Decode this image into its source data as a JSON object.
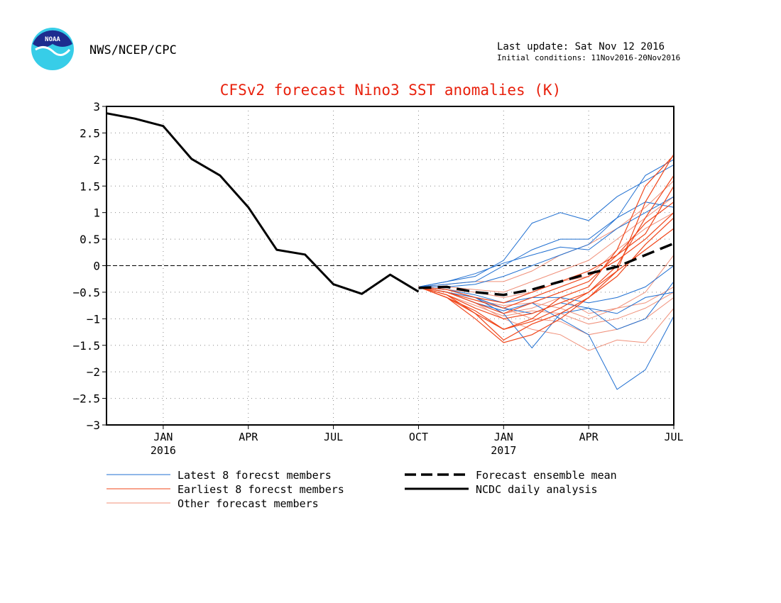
{
  "header": {
    "agency": "NWS/NCEP/CPC",
    "logo_text": "NOAA",
    "last_update": "Last update: Sat Nov 12 2016",
    "initial_conditions": "Initial conditions: 11Nov2016-20Nov2016"
  },
  "colors": {
    "title": "#e8200c",
    "latest": "#1f6fd1",
    "earliest": "#f0461a",
    "other": "#f0907a",
    "analysis": "#000000",
    "logo_dark": "#1d2d8f",
    "logo_light": "#37cde8"
  },
  "chart_data": {
    "type": "line",
    "title": "CFSv2 forecast Nino3 SST anomalies (K)",
    "ylim": [
      -3,
      3
    ],
    "yticks": [
      -3,
      -2.5,
      -2,
      -1.5,
      -1,
      -0.5,
      0,
      0.5,
      1,
      1.5,
      2,
      2.5,
      3
    ],
    "ytick_labels": [
      "−3",
      "−2.5",
      "−2",
      "−1.5",
      "−1",
      "−0.5",
      "0",
      "0.5",
      "1",
      "1.5",
      "2",
      "2.5",
      "3"
    ],
    "xlim": [
      "2015-11",
      "2017-07"
    ],
    "x_ticks": [
      {
        "month": "2016-01",
        "label": "JAN",
        "year": "2016"
      },
      {
        "month": "2016-04",
        "label": "APR",
        "year": ""
      },
      {
        "month": "2016-07",
        "label": "JUL",
        "year": ""
      },
      {
        "month": "2016-10",
        "label": "OCT",
        "year": ""
      },
      {
        "month": "2017-01",
        "label": "JAN",
        "year": "2017"
      },
      {
        "month": "2017-04",
        "label": "APR",
        "year": ""
      },
      {
        "month": "2017-07",
        "label": "JUL",
        "year": ""
      }
    ],
    "grid": true,
    "zero_line": "dashed",
    "legend": {
      "placement": "bottom",
      "entries": [
        {
          "key": "latest",
          "label": "Latest 8 forecst members",
          "style": "thin-blue"
        },
        {
          "key": "earliest",
          "label": "Earliest 8 forecst members",
          "style": "thin-red"
        },
        {
          "key": "other",
          "label": "Other forecast members",
          "style": "thin-pink"
        },
        {
          "key": "mean",
          "label": "Forecast ensemble mean",
          "style": "thick-dashed-black"
        },
        {
          "key": "analysis",
          "label": "NCDC daily analysis",
          "style": "thick-black"
        }
      ]
    },
    "analysis": {
      "name": "NCDC daily analysis",
      "x": [
        "2015-11",
        "2015-12",
        "2016-01",
        "2016-02",
        "2016-03",
        "2016-04",
        "2016-05",
        "2016-06",
        "2016-07",
        "2016-08",
        "2016-09",
        "2016-10"
      ],
      "y": [
        2.87,
        2.77,
        2.63,
        2.01,
        1.7,
        1.1,
        0.3,
        0.21,
        -0.35,
        -0.53,
        -0.17,
        -0.49
      ]
    },
    "ensemble_mean": {
      "name": "Forecast ensemble mean",
      "x": [
        "2016-10",
        "2016-11",
        "2016-12",
        "2017-01",
        "2017-02",
        "2017-03",
        "2017-04",
        "2017-05",
        "2017-06",
        "2017-07"
      ],
      "y": [
        -0.42,
        -0.4,
        -0.5,
        -0.55,
        -0.45,
        -0.3,
        -0.15,
        -0.02,
        0.2,
        0.42
      ]
    },
    "members": {
      "x": [
        "2016-10",
        "2016-11",
        "2016-12",
        "2017-01",
        "2017-02",
        "2017-03",
        "2017-04",
        "2017-05",
        "2017-06",
        "2017-07"
      ],
      "latest": [
        [
          -0.4,
          -0.3,
          -0.2,
          0.1,
          0.8,
          1.0,
          0.85,
          1.3,
          1.6,
          1.9
        ],
        [
          -0.4,
          -0.35,
          -0.3,
          0.0,
          0.3,
          0.5,
          0.5,
          0.9,
          1.2,
          1.1
        ],
        [
          -0.4,
          -0.45,
          -0.6,
          -0.9,
          -1.55,
          -0.9,
          -0.8,
          -1.2,
          -1.0,
          -0.3
        ],
        [
          -0.4,
          -0.5,
          -0.7,
          -0.85,
          -0.7,
          -1.0,
          -1.3,
          -2.33,
          -1.96,
          -0.95
        ],
        [
          -0.4,
          -0.3,
          -0.15,
          0.05,
          0.2,
          0.35,
          0.3,
          0.7,
          1.0,
          1.3
        ],
        [
          -0.4,
          -0.45,
          -0.55,
          -0.7,
          -0.6,
          -0.6,
          -0.7,
          -0.6,
          -0.4,
          0.0
        ],
        [
          -0.4,
          -0.4,
          -0.35,
          -0.2,
          0.0,
          0.2,
          0.4,
          0.9,
          1.7,
          2.0
        ],
        [
          -0.4,
          -0.5,
          -0.6,
          -0.8,
          -0.9,
          -0.7,
          -0.8,
          -0.9,
          -0.6,
          -0.5
        ]
      ],
      "earliest": [
        [
          -0.4,
          -0.55,
          -0.9,
          -1.4,
          -1.1,
          -0.9,
          -0.6,
          -0.1,
          1.2,
          2.1
        ],
        [
          -0.4,
          -0.6,
          -0.85,
          -1.2,
          -1.0,
          -0.6,
          -0.4,
          0.3,
          1.5,
          2.08
        ],
        [
          -0.4,
          -0.5,
          -0.7,
          -0.9,
          -0.7,
          -0.5,
          -0.3,
          0.2,
          0.8,
          1.2
        ],
        [
          -0.4,
          -0.6,
          -1.0,
          -1.45,
          -1.3,
          -1.0,
          -0.6,
          -0.2,
          0.4,
          0.9
        ],
        [
          -0.4,
          -0.45,
          -0.6,
          -0.7,
          -0.5,
          -0.3,
          -0.1,
          0.2,
          0.6,
          1.5
        ],
        [
          -0.4,
          -0.55,
          -0.8,
          -1.0,
          -0.9,
          -0.7,
          -0.5,
          -0.1,
          0.3,
          0.7
        ],
        [
          -0.4,
          -0.5,
          -0.65,
          -0.8,
          -0.6,
          -0.4,
          -0.2,
          0.1,
          0.5,
          1.0
        ],
        [
          -0.4,
          -0.6,
          -0.9,
          -1.2,
          -1.05,
          -0.8,
          -0.5,
          0.0,
          0.9,
          1.7
        ]
      ],
      "other": [
        [
          -0.4,
          -0.5,
          -0.7,
          -1.0,
          -1.2,
          -1.3,
          -1.6,
          -1.4,
          -1.45,
          -0.8
        ],
        [
          -0.4,
          -0.45,
          -0.6,
          -0.8,
          -1.0,
          -1.05,
          -1.3,
          -1.2,
          -1.0,
          -0.6
        ],
        [
          -0.4,
          -0.5,
          -0.65,
          -0.75,
          -0.7,
          -0.8,
          -1.0,
          -0.8,
          -0.7,
          -0.4
        ],
        [
          -0.4,
          -0.4,
          -0.45,
          -0.5,
          -0.3,
          -0.1,
          0.1,
          0.5,
          0.9,
          1.3
        ],
        [
          -0.4,
          -0.45,
          -0.5,
          -0.6,
          -0.5,
          -0.3,
          -0.2,
          0.3,
          0.7,
          1.0
        ],
        [
          -0.4,
          -0.5,
          -0.7,
          -0.9,
          -0.8,
          -0.6,
          -0.9,
          -0.8,
          -0.5,
          0.2
        ],
        [
          -0.4,
          -0.35,
          -0.3,
          -0.3,
          -0.1,
          0.2,
          0.4,
          0.7,
          1.1,
          1.6
        ],
        [
          -0.4,
          -0.55,
          -0.75,
          -0.95,
          -0.85,
          -0.9,
          -1.1,
          -1.0,
          -0.8,
          -0.5
        ]
      ]
    }
  }
}
